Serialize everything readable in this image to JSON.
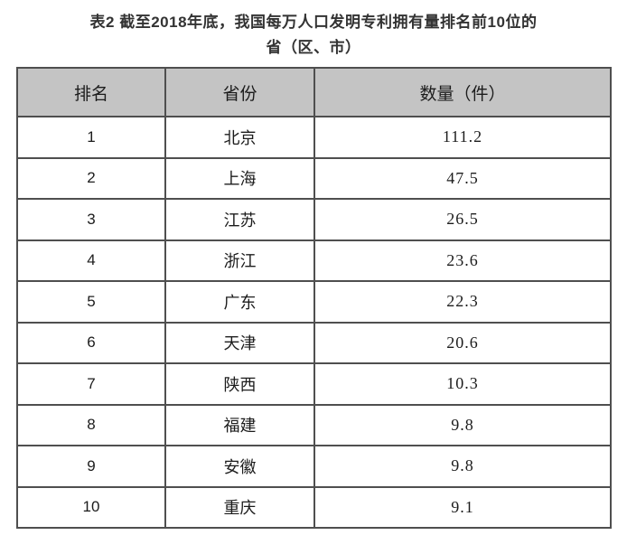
{
  "page": {
    "title_line1": "表2  截至2018年底，我国每万人口发明专利拥有量排名前10位的",
    "title_line2": "省（区、市）"
  },
  "table": {
    "headers": [
      "排名",
      "省份",
      "数量（件）"
    ],
    "rows": [
      {
        "rank": "1",
        "province": "北京",
        "value": "111.2"
      },
      {
        "rank": "2",
        "province": "上海",
        "value": "47.5"
      },
      {
        "rank": "3",
        "province": "江苏",
        "value": "26.5"
      },
      {
        "rank": "4",
        "province": "浙江",
        "value": "23.6"
      },
      {
        "rank": "5",
        "province": "广东",
        "value": "22.3"
      },
      {
        "rank": "6",
        "province": "天津",
        "value": "20.6"
      },
      {
        "rank": "7",
        "province": "陕西",
        "value": "10.3"
      },
      {
        "rank": "8",
        "province": "福建",
        "value": "9.8"
      },
      {
        "rank": "9",
        "province": "安徽",
        "value": "9.8"
      },
      {
        "rank": "10",
        "province": "重庆",
        "value": "9.1"
      }
    ]
  },
  "colors": {
    "header_bg": "#c4c4c4",
    "border": "#4f4f4f",
    "title_text": "#333333",
    "cell_text": "#1c1c1c",
    "page_bg": "#ffffff"
  },
  "chart_data": {
    "type": "table",
    "title": "表2 截至2018年底，我国每万人口发明专利拥有量排名前10位的省（区、市）",
    "columns": [
      "排名",
      "省份",
      "数量（件）"
    ],
    "rows": [
      [
        1,
        "北京",
        111.2
      ],
      [
        2,
        "上海",
        47.5
      ],
      [
        3,
        "江苏",
        26.5
      ],
      [
        4,
        "浙江",
        23.6
      ],
      [
        5,
        "广东",
        22.3
      ],
      [
        6,
        "天津",
        20.6
      ],
      [
        7,
        "陕西",
        10.3
      ],
      [
        8,
        "福建",
        9.8
      ],
      [
        9,
        "安徽",
        9.8
      ],
      [
        10,
        "重庆",
        9.1
      ]
    ]
  }
}
